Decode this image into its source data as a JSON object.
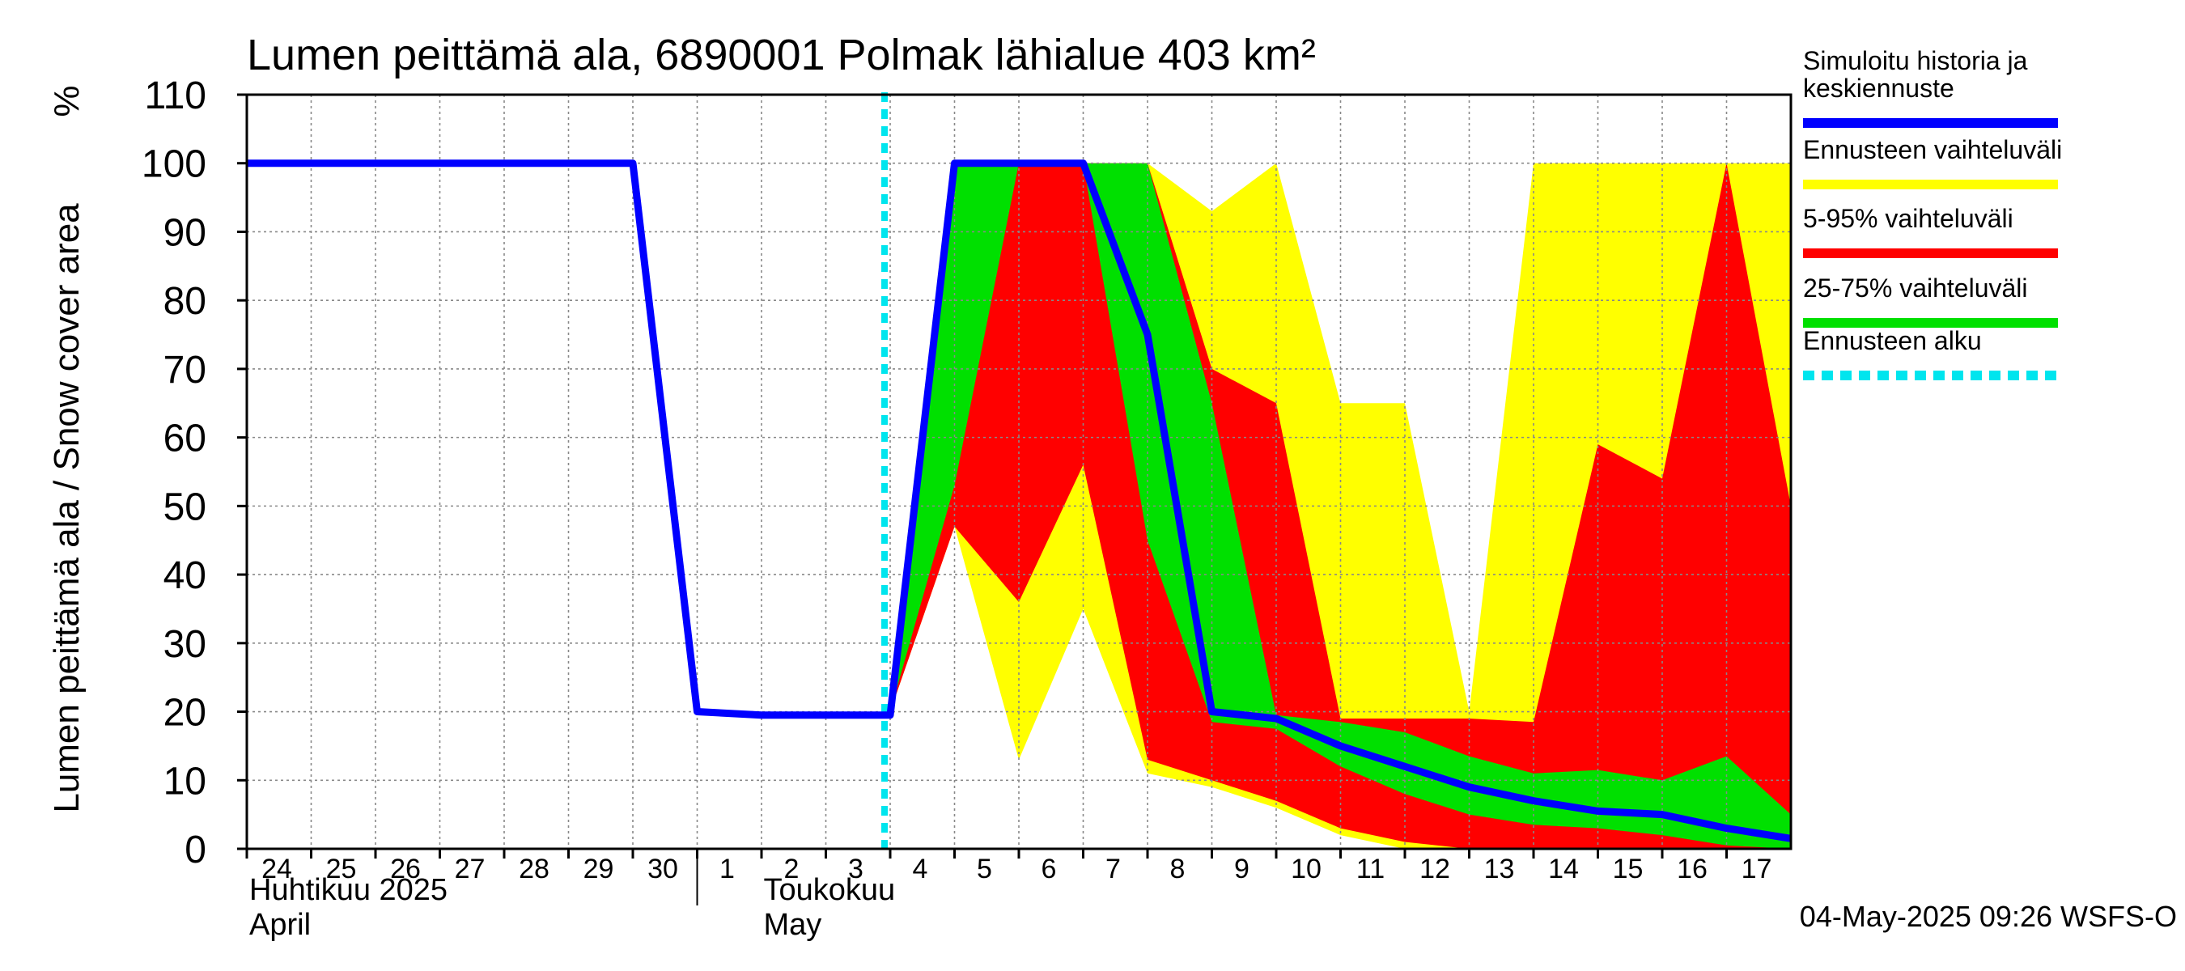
{
  "chart_data": {
    "type": "area",
    "title": "Lumen peittämä ala, 6890001 Polmak lähialue 403 km²",
    "ylabel": "Lumen peittämä ala / Snow cover area",
    "yunit": "%",
    "ylim": [
      0,
      110
    ],
    "yticks": [
      0,
      10,
      20,
      30,
      40,
      50,
      60,
      70,
      80,
      90,
      100,
      110
    ],
    "x_start": "2025-04-24",
    "x_end": "2025-05-18",
    "day_labels": [
      "24",
      "25",
      "26",
      "27",
      "28",
      "29",
      "30",
      "1",
      "2",
      "3",
      "4",
      "5",
      "6",
      "7",
      "8",
      "9",
      "10",
      "11",
      "12",
      "13",
      "14",
      "15",
      "16",
      "17"
    ],
    "month_labels": [
      {
        "line1": "Huhtikuu  2025",
        "line2": "April",
        "date": "2025-04-24"
      },
      {
        "line1": "Toukokuu",
        "line2": "May",
        "date": "2025-05-01"
      }
    ],
    "forecast_start": "2025-05-04",
    "grid": true,
    "legend_position": "right",
    "legend": [
      {
        "label_lines": [
          "Simuloitu historia ja",
          "keskiennuste"
        ],
        "color": "#0000ff",
        "style": "solid"
      },
      {
        "label_lines": [
          "Ennusteen vaihteluväli"
        ],
        "color": "#ffff00",
        "style": "solid"
      },
      {
        "label_lines": [
          "5-95% vaihteluväli"
        ],
        "color": "#ff0000",
        "style": "solid"
      },
      {
        "label_lines": [
          "25-75% vaihteluväli"
        ],
        "color": "#00e000",
        "style": "solid"
      },
      {
        "label_lines": [
          "Ennusteen alku"
        ],
        "color": "#00e5ee",
        "style": "dashed"
      }
    ],
    "series": [
      {
        "name": "Ennusteen vaihteluväli",
        "color": "#ffff00",
        "x": [
          "2025-05-04",
          "2025-05-05",
          "2025-05-06",
          "2025-05-07",
          "2025-05-08",
          "2025-05-09",
          "2025-05-10",
          "2025-05-11",
          "2025-05-12",
          "2025-05-13",
          "2025-05-14",
          "2025-05-15",
          "2025-05-16",
          "2025-05-17",
          "2025-05-18"
        ],
        "upper": [
          20,
          100,
          100,
          100,
          100,
          93,
          100,
          65,
          65,
          20,
          100,
          100,
          100,
          100,
          100
        ],
        "lower": [
          20,
          47,
          13,
          35,
          11,
          9,
          6,
          2,
          0,
          0,
          0,
          0,
          0,
          0,
          0
        ]
      },
      {
        "name": "5-95% vaihteluväli",
        "color": "#ff0000",
        "x": [
          "2025-05-04",
          "2025-05-05",
          "2025-05-06",
          "2025-05-07",
          "2025-05-08",
          "2025-05-09",
          "2025-05-10",
          "2025-05-11",
          "2025-05-12",
          "2025-05-13",
          "2025-05-14",
          "2025-05-15",
          "2025-05-16",
          "2025-05-17",
          "2025-05-18"
        ],
        "upper": [
          20,
          100,
          100,
          100,
          100,
          70,
          65,
          19,
          19,
          19,
          18.5,
          59,
          54,
          100,
          50
        ],
        "lower": [
          20,
          47,
          36,
          56,
          13,
          10,
          7,
          3,
          1,
          0,
          0,
          0,
          0,
          0,
          0
        ]
      },
      {
        "name": "25-75% vaihteluväli",
        "color": "#00e000",
        "x": [
          "2025-05-04",
          "2025-05-05",
          "2025-05-06",
          "2025-05-07",
          "2025-05-08",
          "2025-05-09",
          "2025-05-10",
          "2025-05-11",
          "2025-05-12",
          "2025-05-13",
          "2025-05-14",
          "2025-05-15",
          "2025-05-16",
          "2025-05-17",
          "2025-05-18"
        ],
        "upper": [
          20,
          100,
          100,
          100,
          100,
          65,
          19.5,
          18.5,
          17,
          13.5,
          11,
          11.5,
          10,
          13.5,
          5
        ],
        "lower": [
          20,
          53,
          100,
          100,
          45,
          18.5,
          17.5,
          12,
          8,
          5,
          3.5,
          3,
          2,
          0.5,
          0
        ]
      },
      {
        "name": "Simuloitu historia ja keskiennuste",
        "color": "#0000ff",
        "x": [
          "2025-04-24",
          "2025-04-25",
          "2025-04-26",
          "2025-04-27",
          "2025-04-28",
          "2025-04-29",
          "2025-04-30",
          "2025-05-01",
          "2025-05-02",
          "2025-05-03",
          "2025-05-04",
          "2025-05-05",
          "2025-05-06",
          "2025-05-07",
          "2025-05-08",
          "2025-05-09",
          "2025-05-10",
          "2025-05-11",
          "2025-05-12",
          "2025-05-13",
          "2025-05-14",
          "2025-05-15",
          "2025-05-16",
          "2025-05-17",
          "2025-05-18"
        ],
        "values": [
          100,
          100,
          100,
          100,
          100,
          100,
          100,
          20,
          19.5,
          19.5,
          19.5,
          100,
          100,
          100,
          75,
          20,
          19,
          15,
          12,
          9,
          7,
          5.5,
          5,
          3,
          1.5
        ]
      }
    ]
  },
  "footer_text": "04-May-2025 09:26 WSFS-O"
}
